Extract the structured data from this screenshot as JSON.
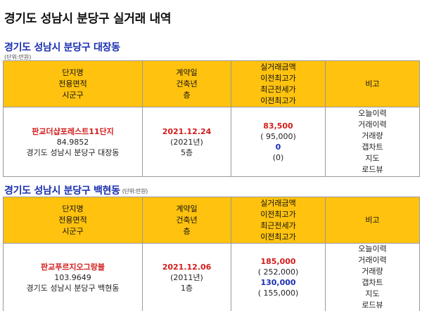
{
  "page": {
    "title": "경기도 성남시 분당구 실거래 내역"
  },
  "headers": {
    "col1": [
      "단지명",
      "전용면적",
      "시군구"
    ],
    "col2": [
      "계약일",
      "건축년",
      "층"
    ],
    "col3": [
      "실거래금액",
      "이전최고가",
      "최근전세가",
      "이전최고가"
    ],
    "col4": [
      "비고"
    ]
  },
  "sections": [
    {
      "title": "경기도 성남시 분당구 대장동",
      "unit": "(단위:만원)",
      "row": {
        "complex_name": "판교더샵포레스트11단지",
        "area": "84.9852",
        "district": "경기도 성남시 분당구 대장동",
        "contract_date": "2021.12.24",
        "build_year": "(2021년)",
        "floor": "5층",
        "price": "83,500",
        "prev_high": "( 95,000)",
        "jeonse": "0",
        "jeonse_prev_high": "(0)",
        "links": [
          "오늘이력",
          "거래이력",
          "거래량",
          "갭차트",
          "지도",
          "로드뷰"
        ]
      }
    },
    {
      "title": "경기도 성남시 분당구 백현동",
      "unit": "(단위:만원)",
      "row": {
        "complex_name": "판교푸르지오그랑블",
        "area": "103.9649",
        "district": "경기도 성남시 분당구 백현동",
        "contract_date": "2021.12.06",
        "build_year": "(2011년)",
        "floor": "1층",
        "price": "185,000",
        "prev_high": "( 252,000)",
        "jeonse": "130,000",
        "jeonse_prev_high": "( 155,000)",
        "links": [
          "오늘이력",
          "거래이력",
          "거래량",
          "갭차트",
          "지도",
          "로드뷰"
        ]
      }
    }
  ]
}
